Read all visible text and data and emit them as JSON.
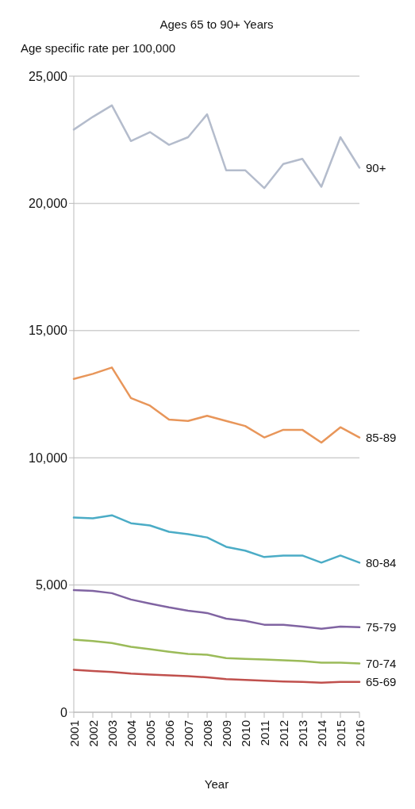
{
  "chart_data": {
    "type": "line",
    "title": "Ages  65 to 90+  Years",
    "ylabel": "Age specific rate per 100,000",
    "xlabel": "Year",
    "categories": [
      "2001",
      "2002",
      "2003",
      "2004",
      "2005",
      "2006",
      "2007",
      "2008",
      "2009",
      "2010",
      "2011",
      "2012",
      "2013",
      "2014",
      "2015",
      "2016"
    ],
    "ylim": [
      0,
      25000
    ],
    "yticks": [
      {
        "value": 0,
        "label": "0"
      },
      {
        "value": 5000,
        "label": "5,000"
      },
      {
        "value": 10000,
        "label": "10,000"
      },
      {
        "value": 15000,
        "label": "15,000"
      },
      {
        "value": 20000,
        "label": "20,000"
      },
      {
        "value": 25000,
        "label": "25,000"
      }
    ],
    "grid": "y",
    "legend": false,
    "marker": "none",
    "line_style": "solid",
    "series": [
      {
        "name": "90+",
        "color": "#b4bccc",
        "values": [
          22900,
          23400,
          23850,
          22450,
          22800,
          22300,
          22600,
          23500,
          21300,
          21300,
          20600,
          21550,
          21750,
          20650,
          22600,
          21400
        ]
      },
      {
        "name": "85-89",
        "color": "#e8965a",
        "values": [
          13100,
          13300,
          13550,
          12350,
          12050,
          11500,
          11450,
          11650,
          11450,
          11250,
          10800,
          11100,
          11100,
          10600,
          11200,
          10800
        ]
      },
      {
        "name": "80-84",
        "color": "#4bacc6",
        "values": [
          7650,
          7620,
          7740,
          7430,
          7340,
          7090,
          7000,
          6870,
          6500,
          6350,
          6100,
          6160,
          6160,
          5880,
          6160,
          5880
        ]
      },
      {
        "name": "75-79",
        "color": "#8064a2",
        "values": [
          4800,
          4770,
          4680,
          4430,
          4270,
          4120,
          3990,
          3900,
          3680,
          3590,
          3440,
          3440,
          3370,
          3280,
          3370,
          3340
        ]
      },
      {
        "name": "70-74",
        "color": "#9bbb59",
        "values": [
          2850,
          2800,
          2720,
          2570,
          2480,
          2380,
          2290,
          2260,
          2130,
          2100,
          2070,
          2040,
          2010,
          1950,
          1950,
          1920
        ]
      },
      {
        "name": "65-69",
        "color": "#c0504d",
        "values": [
          1670,
          1620,
          1580,
          1520,
          1480,
          1450,
          1420,
          1370,
          1300,
          1270,
          1240,
          1210,
          1190,
          1160,
          1190,
          1190
        ]
      }
    ]
  }
}
